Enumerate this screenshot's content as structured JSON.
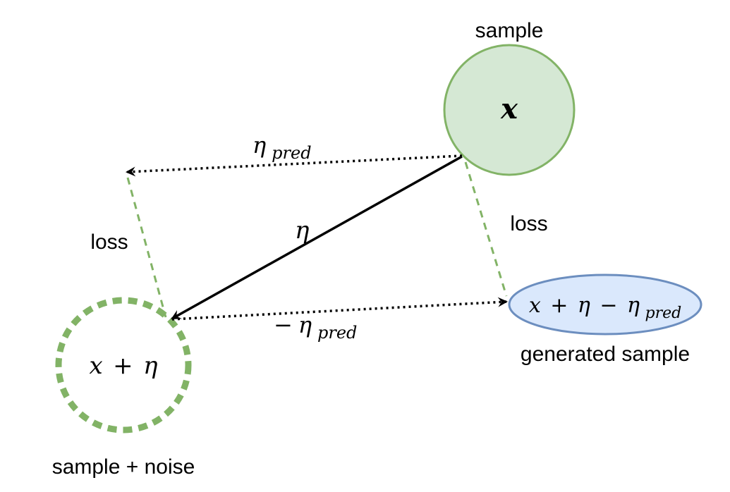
{
  "labels": {
    "sample": "sample",
    "sample_noise": "sample + noise",
    "generated_sample": "generated sample",
    "loss_left": "loss",
    "loss_right": "loss"
  },
  "math": {
    "x_node": "x",
    "noisy_node": {
      "x": "x",
      "plus": "+",
      "eta": "η"
    },
    "generated_node": {
      "x": "x",
      "plus": "+",
      "eta": "η",
      "minus": "−",
      "eta2": "η",
      "pred": "pred"
    },
    "eta_label": "η",
    "eta_pred_label": {
      "eta": "η",
      "pred": "pred"
    },
    "neg_eta_pred_label": {
      "minus": "−",
      "eta": "η",
      "pred": "pred"
    }
  },
  "colors": {
    "green_stroke": "#82b366",
    "green_fill": "#d5e8d4",
    "blue_stroke": "#6c8ebf",
    "blue_fill": "#dae8fc",
    "arrow": "#000000"
  }
}
